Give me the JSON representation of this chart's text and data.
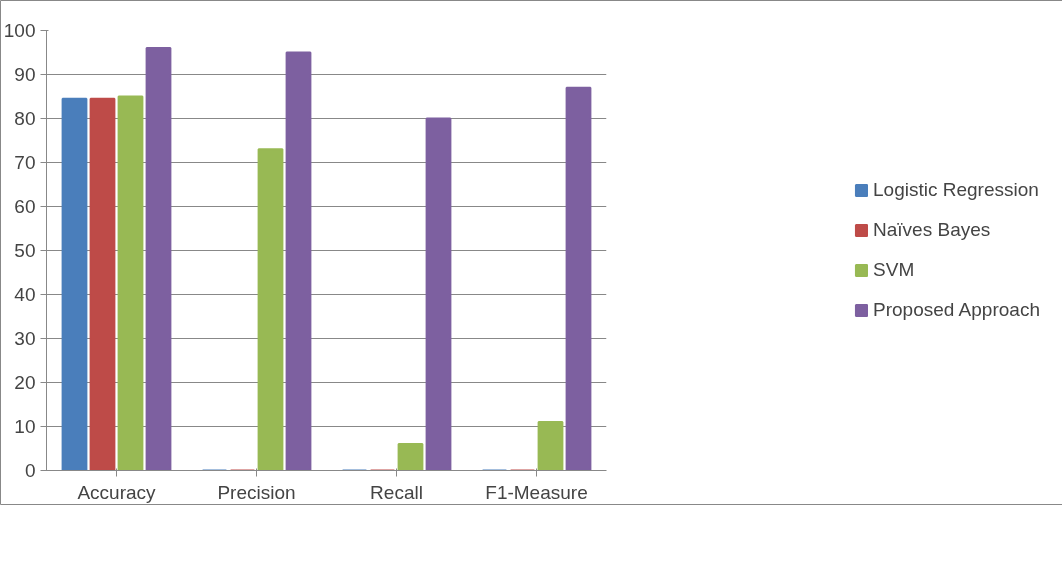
{
  "chart_data": {
    "type": "bar",
    "categories": [
      "Accuracy",
      "Precision",
      "Recall",
      "F1-Measure"
    ],
    "series": [
      {
        "name": "Logistic Regression",
        "color": "#4a7ebb",
        "values": [
          84.5,
          0,
          0,
          0
        ]
      },
      {
        "name": "Naïves Bayes",
        "color": "#be4b48",
        "values": [
          84.5,
          0,
          0,
          0
        ]
      },
      {
        "name": "SVM",
        "color": "#98b954",
        "values": [
          85,
          73,
          6,
          11
        ]
      },
      {
        "name": "Proposed Approach",
        "color": "#7d60a0",
        "values": [
          96,
          95,
          80,
          87
        ]
      }
    ],
    "ylim": [
      0,
      100
    ],
    "yticks": [
      0,
      10,
      20,
      30,
      40,
      50,
      60,
      70,
      80,
      90,
      100
    ],
    "grid": "y",
    "legend": "right"
  }
}
